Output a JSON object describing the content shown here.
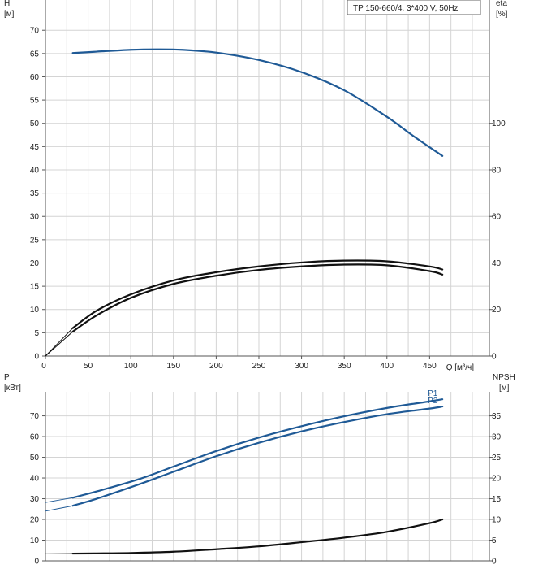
{
  "colors": {
    "blue": "#1f5a96",
    "black": "#111111",
    "grid": "#d4d4d4",
    "axis": "#555555"
  },
  "legend_box_text": "TP 150-660/4, 3*400 V, 50Hz",
  "chart_data": [
    {
      "type": "line",
      "panel": "head-eta",
      "left_axis": {
        "label": "H",
        "unit": "[м]",
        "ylim": [
          0,
          75
        ],
        "ticks": [
          0,
          5,
          10,
          15,
          20,
          25,
          30,
          35,
          40,
          45,
          50,
          55,
          60,
          65,
          70
        ]
      },
      "right_axis": {
        "label": "eta",
        "unit": "[%]",
        "ylim": [
          0,
          150
        ],
        "ticks": [
          0,
          20,
          40,
          60,
          80,
          100
        ]
      },
      "x_axis": {
        "label": "Q [м³/ч]",
        "xlim": [
          0,
          470
        ],
        "ticks": [
          0,
          50,
          100,
          150,
          200,
          250,
          300,
          350,
          400,
          450
        ]
      },
      "grid": true,
      "series": [
        {
          "color": "#1f5a96",
          "axis": "left",
          "thin_x": [
            0,
            32
          ],
          "x": [
            32,
            60,
            100,
            130,
            160,
            200,
            250,
            300,
            350,
            400,
            430,
            465
          ],
          "y": [
            65.1,
            65.4,
            65.8,
            65.9,
            65.8,
            65.2,
            63.6,
            61.0,
            57.1,
            51.4,
            47.4,
            43.0
          ]
        },
        {
          "color": "#111111",
          "axis": "right",
          "thin_x": [
            0,
            32
          ],
          "x": [
            0,
            32,
            60,
            100,
            150,
            200,
            250,
            300,
            350,
            400,
            450,
            465
          ],
          "y": [
            0,
            10.5,
            17.5,
            25,
            31,
            34.5,
            37,
            38.5,
            39.3,
            39.0,
            36.5,
            35.0
          ]
        },
        {
          "color": "#111111",
          "axis": "right",
          "thin_x": [
            0,
            32
          ],
          "x": [
            0,
            32,
            60,
            100,
            150,
            200,
            250,
            300,
            350,
            400,
            450,
            465
          ],
          "y": [
            0,
            12,
            19.5,
            26.5,
            32.5,
            36,
            38.5,
            40.2,
            41.0,
            40.7,
            38.5,
            37.2
          ]
        }
      ]
    },
    {
      "type": "line",
      "panel": "power-npsh",
      "left_axis": {
        "label": "P",
        "unit": "[кВт]",
        "ylim": [
          0,
          80
        ],
        "ticks": [
          0,
          10,
          20,
          30,
          40,
          50,
          60,
          70
        ]
      },
      "right_axis": {
        "label": "NPSH",
        "unit": "[м]",
        "ylim": [
          0,
          40
        ],
        "ticks": [
          0,
          5,
          10,
          15,
          20,
          25,
          30,
          35
        ]
      },
      "x_axis": {
        "xlim": [
          0,
          470
        ],
        "ticks": [
          0,
          50,
          100,
          150,
          200,
          250,
          300,
          350,
          400,
          450
        ]
      },
      "grid": true,
      "series": [
        {
          "name": "P1",
          "color": "#1f5a96",
          "axis": "left",
          "thin_x": [
            0,
            32
          ],
          "x": [
            0,
            32,
            60,
            110,
            150,
            200,
            250,
            300,
            350,
            400,
            450,
            465
          ],
          "y": [
            28.2,
            30.5,
            33.5,
            39.5,
            45.5,
            53,
            59.5,
            65,
            69.8,
            73.8,
            77,
            78
          ]
        },
        {
          "name": "P2",
          "color": "#1f5a96",
          "axis": "left",
          "thin_x": [
            0,
            32
          ],
          "x": [
            0,
            32,
            60,
            110,
            150,
            200,
            250,
            300,
            350,
            400,
            450,
            465
          ],
          "y": [
            24,
            26.6,
            30,
            37,
            43,
            50.5,
            57,
            62.5,
            67,
            70.8,
            73.5,
            74.5
          ]
        },
        {
          "color": "#111111",
          "axis": "right",
          "thin_x": [
            0,
            32
          ],
          "x": [
            0,
            32,
            60,
            100,
            150,
            200,
            250,
            300,
            350,
            400,
            450,
            465
          ],
          "y": [
            1.7,
            1.75,
            1.8,
            1.9,
            2.2,
            2.8,
            3.5,
            4.5,
            5.6,
            7.0,
            9.1,
            10.0
          ]
        }
      ]
    }
  ]
}
